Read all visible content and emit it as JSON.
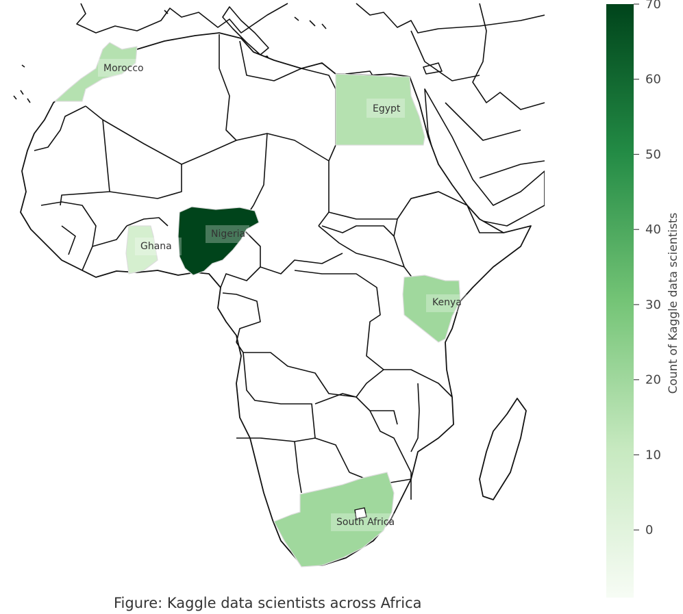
{
  "figure": {
    "caption": "Figure: Kaggle data scientists across Africa"
  },
  "colorbar": {
    "title": "Count of Kaggle data scientists",
    "min": -9,
    "max": 70,
    "ticks": [
      0,
      10,
      20,
      30,
      40,
      50,
      60,
      70
    ],
    "colors": [
      "#f7fcf5",
      "#c7e9c0",
      "#74c476",
      "#238b45",
      "#00441b"
    ]
  },
  "countries": [
    {
      "id": "morocco",
      "name": "Morocco",
      "count": 15
    },
    {
      "id": "egypt",
      "name": "Egypt",
      "count": 15
    },
    {
      "id": "nigeria",
      "name": "Nigeria",
      "count": 70
    },
    {
      "id": "ghana",
      "name": "Ghana",
      "count": 5
    },
    {
      "id": "kenya",
      "name": "Kenya",
      "count": 20
    },
    {
      "id": "south-africa",
      "name": "South Africa",
      "count": 20
    }
  ],
  "chart_data": {
    "type": "choropleth",
    "region": "Africa",
    "regions": [
      "Morocco",
      "Egypt",
      "Nigeria",
      "Ghana",
      "Kenya",
      "South Africa"
    ],
    "values": [
      15,
      15,
      70,
      5,
      20,
      20
    ],
    "xlabel": "",
    "ylabel": "",
    "legend": {
      "type": "colorbar",
      "placement": "right",
      "title": "Count of Kaggle data scientists",
      "range": [
        -9,
        70
      ]
    }
  }
}
